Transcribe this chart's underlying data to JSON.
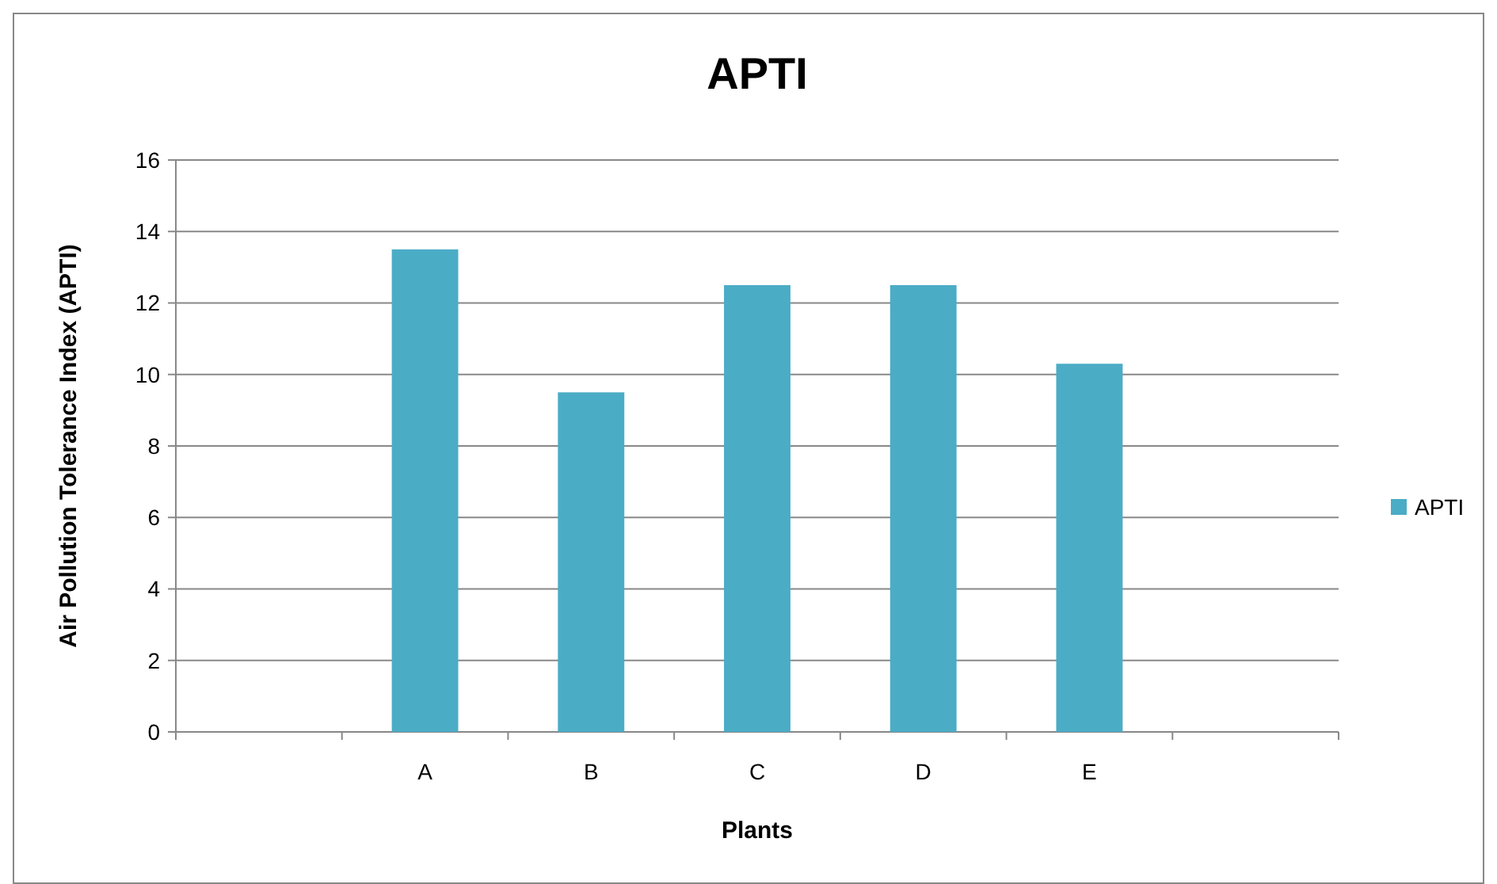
{
  "chart_data": {
    "type": "bar",
    "title": "APTI",
    "xlabel": "Plants",
    "ylabel": "Air Pollution Tolerance Index (APTI)",
    "categories": [
      null,
      "A",
      "B",
      "C",
      "D",
      "E",
      null
    ],
    "series": [
      {
        "name": "APTI",
        "color": "#4bacc6",
        "values": [
          null,
          13.5,
          9.5,
          12.5,
          12.5,
          10.3,
          null
        ]
      }
    ],
    "ylim": [
      0,
      16
    ],
    "yticks": [
      0,
      2,
      4,
      6,
      8,
      10,
      12,
      14,
      16
    ],
    "grid": "y",
    "legend": "right"
  }
}
